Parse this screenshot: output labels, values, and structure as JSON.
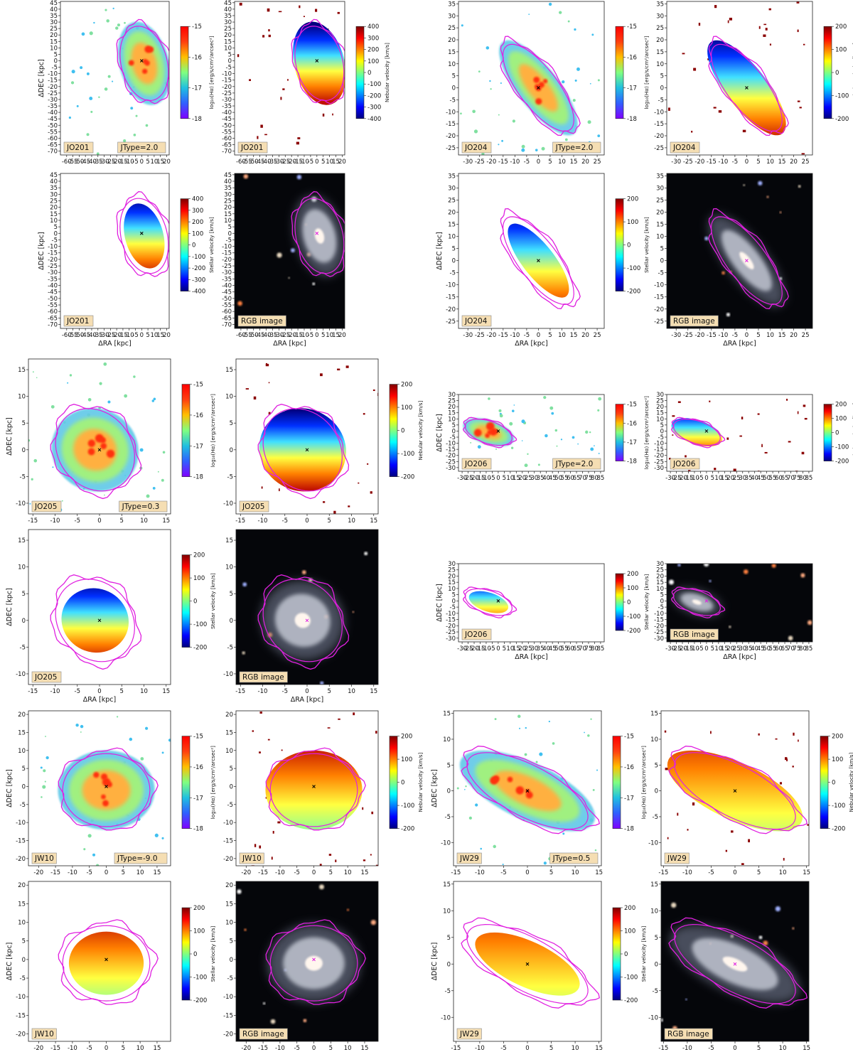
{
  "figure": {
    "units": {
      "ra": "ΔRA [kpc]",
      "dec": "ΔDEC [kpc]",
      "halpha": "log₁₀(Hα) [erg/s/cm²/arcsec²]",
      "nebular": "Nebular velocity [km/s]",
      "stellar": "Stellar velocity [km/s]"
    },
    "rgb_label": "RGB image",
    "colormaps": {
      "rainbow": [
        "#8000ff",
        "#3060ff",
        "#20c0e0",
        "#80ff80",
        "#ffc000",
        "#ff4010",
        "#ff0000"
      ],
      "jet": [
        "#00007f",
        "#0000ff",
        "#0080ff",
        "#00ffff",
        "#80ff80",
        "#ffff00",
        "#ff8000",
        "#ff0000",
        "#7f0000"
      ]
    },
    "contour_color": "#e020e0",
    "galaxies": [
      {
        "id": "JO201",
        "jtype": "JType=2.0",
        "xlim": [
          -65,
          22
        ],
        "ylim": [
          -73,
          46
        ],
        "xticks": [
          -60,
          -55,
          -50,
          -45,
          -40,
          -35,
          -30,
          -25,
          -20,
          -15,
          -10,
          -5,
          0,
          5,
          10,
          15,
          20
        ],
        "yticks": [
          45,
          40,
          35,
          30,
          25,
          20,
          15,
          10,
          5,
          0,
          -5,
          -10,
          -15,
          -20,
          -25,
          -30,
          -35,
          -40,
          -45,
          -50,
          -55,
          -60,
          -65,
          -70
        ],
        "ha_cbar": [
          -15,
          -16,
          -17,
          -18
        ],
        "neb_cbar": [
          400,
          300,
          200,
          100,
          0,
          -100,
          -200,
          -300,
          -400
        ],
        "star_cbar": [
          400,
          300,
          200,
          100,
          0,
          -100,
          -200,
          -300,
          -400
        ]
      },
      {
        "id": "JO204",
        "jtype": "JType=2.0",
        "xlim": [
          -34,
          28
        ],
        "ylim": [
          -28,
          36
        ],
        "xticks": [
          -30,
          -25,
          -20,
          -15,
          -10,
          -5,
          0,
          5,
          10,
          15,
          20,
          25
        ],
        "yticks": [
          35,
          30,
          25,
          20,
          15,
          10,
          5,
          0,
          -5,
          -10,
          -15,
          -20,
          -25
        ],
        "ha_cbar": [
          -15,
          -16,
          -17,
          -18
        ],
        "neb_cbar": [
          200,
          100,
          0,
          -100,
          -200
        ],
        "star_cbar": [
          200,
          100,
          0,
          -100,
          -200
        ]
      },
      {
        "id": "JO205",
        "jtype": "JType=0.3",
        "xlim": [
          -16,
          16
        ],
        "ylim": [
          -12,
          17
        ],
        "xticks": [
          -15,
          -10,
          -5,
          0,
          5,
          10,
          15
        ],
        "yticks": [
          15,
          10,
          5,
          0,
          -5,
          -10
        ],
        "ha_cbar": [
          -15,
          -16,
          -17,
          -18
        ],
        "neb_cbar": [
          200,
          100,
          0,
          -100,
          -200
        ],
        "star_cbar": [
          200,
          100,
          0,
          -100,
          -200
        ]
      },
      {
        "id": "JO206",
        "jtype": "JType=2.0",
        "xlim": [
          -33,
          88
        ],
        "ylim": [
          -33,
          30
        ],
        "xticks": [
          -30,
          -25,
          -20,
          -15,
          -10,
          -5,
          0,
          5,
          10,
          15,
          20,
          25,
          30,
          35,
          40,
          45,
          50,
          55,
          60,
          65,
          70,
          75,
          80,
          85
        ],
        "yticks": [
          30,
          25,
          20,
          15,
          10,
          5,
          0,
          -5,
          -10,
          -15,
          -20,
          -25,
          -30
        ],
        "ha_cbar": [
          -15,
          -16,
          -17,
          -18
        ],
        "neb_cbar": [
          200,
          100,
          0,
          -100,
          -200
        ],
        "star_cbar": [
          200,
          100,
          0,
          -100,
          -200
        ]
      },
      {
        "id": "JW10",
        "jtype": "JType=-9.0",
        "xlim": [
          -23,
          19
        ],
        "ylim": [
          -22,
          21
        ],
        "xticks": [
          -20,
          -15,
          -10,
          -5,
          0,
          5,
          10,
          15
        ],
        "yticks": [
          20,
          15,
          10,
          5,
          0,
          -5,
          -10,
          -15,
          -20
        ],
        "ha_cbar": [
          -15,
          -16,
          -17,
          -18
        ],
        "neb_cbar": [
          200,
          100,
          0,
          -100,
          -200
        ],
        "star_cbar": [
          200,
          100,
          0,
          -100,
          -200
        ]
      },
      {
        "id": "JW29",
        "jtype": "JType=0.5",
        "xlim": [
          -15.5,
          15.5
        ],
        "ylim": [
          -14.5,
          15.5
        ],
        "xticks": [
          -15,
          -10,
          -5,
          0,
          5,
          10,
          15
        ],
        "yticks": [
          15,
          10,
          5,
          0,
          -5,
          -10
        ],
        "ha_cbar": [
          -15,
          -16,
          -17,
          -18
        ],
        "neb_cbar": [
          200,
          100,
          0,
          -100,
          -200
        ],
        "star_cbar": [
          200,
          100,
          0,
          -100,
          -200
        ]
      }
    ]
  }
}
